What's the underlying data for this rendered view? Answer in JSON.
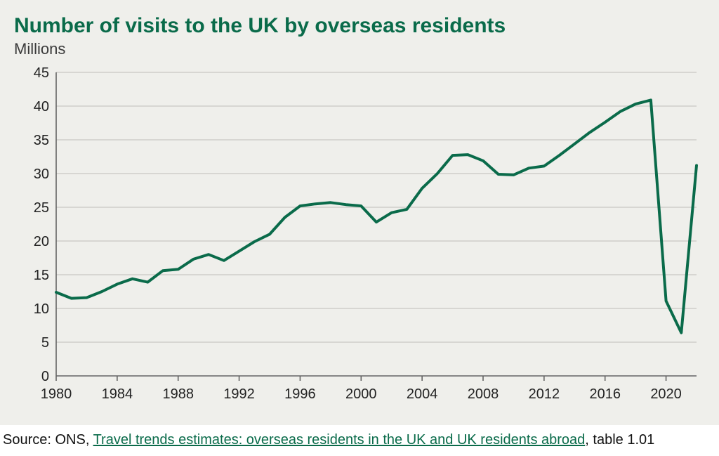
{
  "chart": {
    "type": "line",
    "title": "Number of visits to the UK by overseas residents",
    "subtitle": "Millions",
    "title_color": "#0a6b4a",
    "subtitle_color": "#3a3a3a",
    "title_fontsize": 30,
    "subtitle_fontsize": 22,
    "background_color": "#efefeb",
    "plot_background": "#efefeb",
    "grid_color": "#cfcec9",
    "axis_color": "#646464",
    "axis_line_width": 1.6,
    "line_color": "#0a6b4a",
    "line_width": 4,
    "tick_label_fontsize": 20,
    "tick_label_color": "#222222",
    "ylim": [
      0,
      45
    ],
    "ytick_step": 5,
    "xlim": [
      1980,
      2022
    ],
    "xtick_step": 4,
    "xticks_end": 2020,
    "years": [
      1980,
      1981,
      1982,
      1983,
      1984,
      1985,
      1986,
      1987,
      1988,
      1989,
      1990,
      1991,
      1992,
      1993,
      1994,
      1995,
      1996,
      1997,
      1998,
      1999,
      2000,
      2001,
      2002,
      2003,
      2004,
      2005,
      2006,
      2007,
      2008,
      2009,
      2010,
      2011,
      2012,
      2013,
      2014,
      2015,
      2016,
      2017,
      2018,
      2019,
      2020,
      2021,
      2022
    ],
    "values": [
      12.4,
      11.5,
      11.6,
      12.5,
      13.6,
      14.4,
      13.9,
      15.6,
      15.8,
      17.3,
      18.0,
      17.1,
      18.5,
      19.9,
      21.0,
      23.5,
      25.2,
      25.5,
      25.7,
      25.4,
      25.2,
      22.8,
      24.2,
      24.7,
      27.8,
      30.0,
      32.7,
      32.8,
      31.9,
      29.9,
      29.8,
      30.8,
      31.1,
      32.7,
      34.4,
      36.1,
      37.6,
      39.2,
      40.3,
      40.9,
      11.1,
      6.4,
      31.2
    ]
  },
  "source": {
    "prefix": "Source: ONS, ",
    "link_text": "Travel trends estimates: overseas residents in the UK and UK residents abroad",
    "suffix": ", table 1.01",
    "link_color": "#0a6b4a"
  }
}
